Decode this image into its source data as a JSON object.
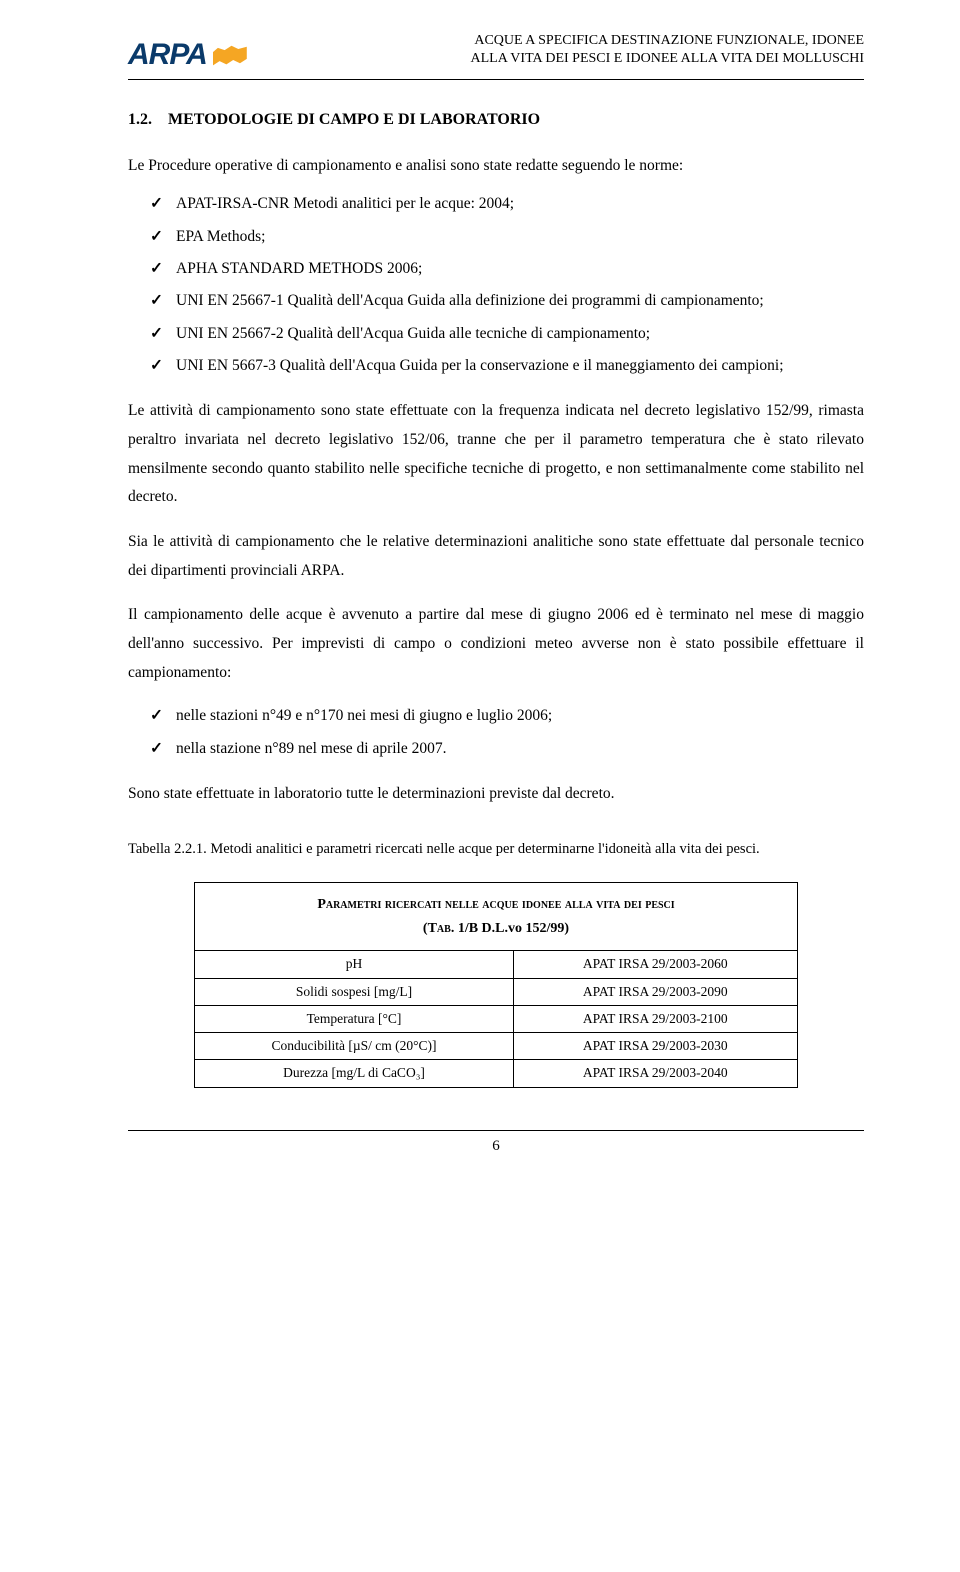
{
  "header": {
    "logo_text": "ARPA",
    "title_line1": "ACQUE A SPECIFICA DESTINAZIONE FUNZIONALE, IDONEE",
    "title_line2": "ALLA VITA DEI PESCI E IDONEE ALLA VITA DEI MOLLUSCHI"
  },
  "section": {
    "number": "1.2.",
    "title": "METODOLOGIE DI CAMPO E DI LABORATORIO"
  },
  "intro": "Le Procedure operative di campionamento e analisi sono state redatte seguendo le norme:",
  "methods": [
    "APAT-IRSA-CNR Metodi analitici per le acque: 2004;",
    "EPA Methods;",
    "APHA STANDARD METHODS 2006;",
    "UNI EN 25667-1 Qualità dell'Acqua Guida alla definizione dei programmi di campionamento;",
    "UNI EN 25667-2 Qualità dell'Acqua Guida alle tecniche di campionamento;",
    "UNI EN 5667-3 Qualità dell'Acqua Guida per la conservazione e il maneggiamento dei campioni;"
  ],
  "paras": [
    "Le attività di campionamento sono state effettuate con la frequenza indicata nel decreto legislativo 152/99, rimasta peraltro invariata nel decreto legislativo 152/06, tranne che per il parametro temperatura che è stato rilevato mensilmente secondo quanto stabilito nelle specifiche tecniche di progetto, e non settimanalmente come stabilito nel decreto.",
    "Sia le attività di campionamento che le relative determinazioni analitiche sono state effettuate dal personale tecnico dei dipartimenti provinciali ARPA.",
    "Il campionamento delle acque è avvenuto a partire dal mese di giugno 2006 ed è terminato nel mese di maggio dell'anno successivo. Per imprevisti di campo o condizioni meteo avverse non è stato possibile effettuare il campionamento:"
  ],
  "exceptions": [
    "nelle stazioni n°49 e n°170 nei mesi di giugno e luglio 2006;",
    "nella stazione n°89 nel mese di aprile 2007."
  ],
  "closing": "Sono state effettuate in laboratorio tutte le determinazioni previste dal decreto.",
  "table_caption": "Tabella 2.2.1.   Metodi analitici e parametri ricercati nelle acque per determinarne l'idoneità alla vita dei pesci.",
  "table": {
    "title_line1": "Parametri ricercati nelle acque idonee alla vita dei pesci",
    "title_line2_a": "(Tab.",
    "title_line2_b": " 1/B D.L.vo 152/99)",
    "rows": [
      {
        "param": "pH",
        "method": "APAT IRSA 29/2003-2060"
      },
      {
        "param": "Solidi sospesi [mg/L]",
        "method": "APAT IRSA 29/2003-2090"
      },
      {
        "param": "Temperatura [°C]",
        "method": "APAT IRSA 29/2003-2100"
      },
      {
        "param": "Conducibilità [µS/ cm (20°C)]",
        "method": "APAT IRSA 29/2003-2030"
      },
      {
        "param": "Durezza [mg/L di CaCO₃]",
        "method": "APAT IRSA 29/2003-2040"
      }
    ]
  },
  "page_number": "6"
}
